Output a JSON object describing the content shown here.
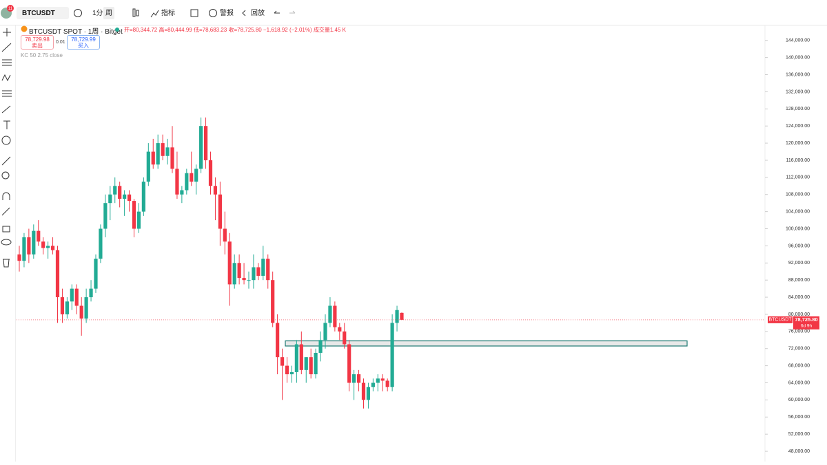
{
  "header": {
    "symbol": "BTCUSDT",
    "badge": "11",
    "interval": "1分",
    "period": "周",
    "indicators": "指标",
    "alerts": "警报",
    "replay": "回放"
  },
  "legend": {
    "title": "BTCUSDT SPOT · 1周 · Bitget",
    "ohlc": "开=80,344.72 高=80,444.99 低=78,683.23 收=78,725.80 −1,618.92 (−2.01%) 成交量1.45 K",
    "sell_price": "78,729.98",
    "sell": "卖出",
    "spread": "0.01",
    "buy_price": "78,729.99",
    "buy": "买入",
    "indicator": "KC 50 2.75 close"
  },
  "chart_data": {
    "type": "candlestick",
    "up_color": "#22ab94",
    "down_color": "#f23645",
    "ylim": [
      45600,
      148300
    ],
    "yticks": [
      {
        "value": 144000,
        "label": "144,000.00"
      },
      {
        "value": 140000,
        "label": "140,000.00"
      },
      {
        "value": 136000,
        "label": "136,000.00"
      },
      {
        "value": 132000,
        "label": "132,000.00"
      },
      {
        "value": 128000,
        "label": "128,000.00"
      },
      {
        "value": 124000,
        "label": "124,000.00"
      },
      {
        "value": 120000,
        "label": "120,000.00"
      },
      {
        "value": 116000,
        "label": "116,000.00"
      },
      {
        "value": 112000,
        "label": "112,000.00"
      },
      {
        "value": 108000,
        "label": "108,000.00"
      },
      {
        "value": 104000,
        "label": "104,000.00"
      },
      {
        "value": 100000,
        "label": "100,000.00"
      },
      {
        "value": 96000,
        "label": "96,000.00"
      },
      {
        "value": 92000,
        "label": "92,000.00"
      },
      {
        "value": 88000,
        "label": "88,000.00"
      },
      {
        "value": 84000,
        "label": "84,000.00"
      },
      {
        "value": 80000,
        "label": "80,000.00"
      },
      {
        "value": 76000,
        "label": "76,000.00"
      },
      {
        "value": 72000,
        "label": "72,000.00"
      },
      {
        "value": 68000,
        "label": "68,000.00"
      },
      {
        "value": 64000,
        "label": "64,000.00"
      },
      {
        "value": 60000,
        "label": "60,000.00"
      },
      {
        "value": 56000,
        "label": "56,000.00"
      },
      {
        "value": 52000,
        "label": "52,000.00"
      },
      {
        "value": 48000,
        "label": "48,000.00"
      }
    ],
    "ohlc": [
      [
        94000,
        96000,
        90000,
        92500
      ],
      [
        92500,
        99000,
        91000,
        98000
      ],
      [
        98000,
        100000,
        92000,
        94000
      ],
      [
        94000,
        101000,
        93000,
        99500
      ],
      [
        99500,
        102000,
        96000,
        97000
      ],
      [
        97000,
        98000,
        94000,
        95500
      ],
      [
        95500,
        97000,
        93000,
        96000
      ],
      [
        96000,
        98000,
        94000,
        95000
      ],
      [
        95000,
        96000,
        78000,
        84000
      ],
      [
        84000,
        86000,
        78000,
        80000
      ],
      [
        80000,
        84000,
        79000,
        83000
      ],
      [
        83000,
        87000,
        81000,
        86000
      ],
      [
        86000,
        87000,
        80000,
        82000
      ],
      [
        82000,
        84000,
        75000,
        79000
      ],
      [
        79000,
        86000,
        78000,
        84000
      ],
      [
        84000,
        88000,
        83000,
        86000
      ],
      [
        86000,
        94000,
        85000,
        93000
      ],
      [
        93000,
        101000,
        92000,
        100000
      ],
      [
        100000,
        108000,
        98000,
        106000
      ],
      [
        106000,
        110000,
        102000,
        108000
      ],
      [
        108000,
        112000,
        106000,
        110000
      ],
      [
        110000,
        111000,
        105000,
        107000
      ],
      [
        107000,
        109000,
        103000,
        108000
      ],
      [
        108000,
        109000,
        104000,
        106500
      ],
      [
        106500,
        107000,
        98000,
        100000
      ],
      [
        100000,
        106000,
        99000,
        104000
      ],
      [
        104000,
        112000,
        103000,
        111000
      ],
      [
        111000,
        120000,
        110000,
        118000
      ],
      [
        118000,
        121000,
        114000,
        115000
      ],
      [
        115000,
        122000,
        114000,
        120000
      ],
      [
        120000,
        122000,
        116000,
        117000
      ],
      [
        117000,
        121000,
        115000,
        119000
      ],
      [
        119000,
        124000,
        113000,
        114000
      ],
      [
        114000,
        118000,
        107000,
        108000
      ],
      [
        108000,
        110000,
        106000,
        109000
      ],
      [
        109000,
        114000,
        108000,
        113000
      ],
      [
        113000,
        118000,
        110000,
        111000
      ],
      [
        111000,
        115000,
        108000,
        114000
      ],
      [
        114000,
        126000,
        113000,
        124000
      ],
      [
        124000,
        126000,
        114000,
        116000
      ],
      [
        116000,
        118000,
        108000,
        110000
      ],
      [
        110000,
        112000,
        102000,
        108000
      ],
      [
        108000,
        111000,
        96000,
        100000
      ],
      [
        100000,
        104000,
        94000,
        97000
      ],
      [
        97000,
        99000,
        82000,
        87000
      ],
      [
        87000,
        94000,
        86000,
        92000
      ],
      [
        92000,
        94000,
        87000,
        88500
      ],
      [
        88500,
        92000,
        87000,
        88000
      ],
      [
        88000,
        90000,
        86000,
        88000
      ],
      [
        88000,
        94000,
        86000,
        91000
      ],
      [
        91000,
        92000,
        88000,
        89000
      ],
      [
        89000,
        96000,
        88000,
        93000
      ],
      [
        93000,
        94000,
        86000,
        88000
      ],
      [
        88000,
        90000,
        77000,
        78000
      ],
      [
        78000,
        80000,
        66000,
        70000
      ],
      [
        70000,
        72000,
        60000,
        68000
      ],
      [
        68000,
        70000,
        64000,
        66000
      ],
      [
        66000,
        68000,
        64000,
        66500
      ],
      [
        66500,
        74000,
        64000,
        73000
      ],
      [
        73000,
        76000,
        66000,
        67000
      ],
      [
        67000,
        70000,
        64000,
        70000
      ],
      [
        70000,
        72000,
        65000,
        66000
      ],
      [
        66000,
        72000,
        65000,
        71000
      ],
      [
        71000,
        76000,
        69000,
        74000
      ],
      [
        74000,
        80000,
        72000,
        78000
      ],
      [
        78000,
        84000,
        77000,
        82000
      ],
      [
        82000,
        83000,
        76000,
        77000
      ],
      [
        77000,
        78000,
        74000,
        76000
      ],
      [
        76000,
        78000,
        72000,
        73000
      ],
      [
        73000,
        74000,
        62000,
        64000
      ],
      [
        64000,
        67000,
        60000,
        66000
      ],
      [
        66000,
        67000,
        62000,
        64000
      ],
      [
        64000,
        65000,
        58000,
        60000
      ],
      [
        60000,
        64000,
        58000,
        63000
      ],
      [
        63000,
        65000,
        62000,
        64000
      ],
      [
        64000,
        66000,
        62000,
        65000
      ],
      [
        65000,
        66000,
        62000,
        64500
      ],
      [
        64500,
        65000,
        62000,
        63000
      ],
      [
        63000,
        80000,
        62000,
        78000
      ],
      [
        78000,
        82000,
        76000,
        81000
      ],
      [
        80344.72,
        80444.99,
        78683.23,
        78725.8
      ]
    ],
    "zone": [
      73800,
      72600
    ],
    "last_price": {
      "value": 78725.8,
      "label": "78,725.80"
    },
    "last_symbol": "BTCUSDT",
    "countdown": "6d 9h"
  }
}
